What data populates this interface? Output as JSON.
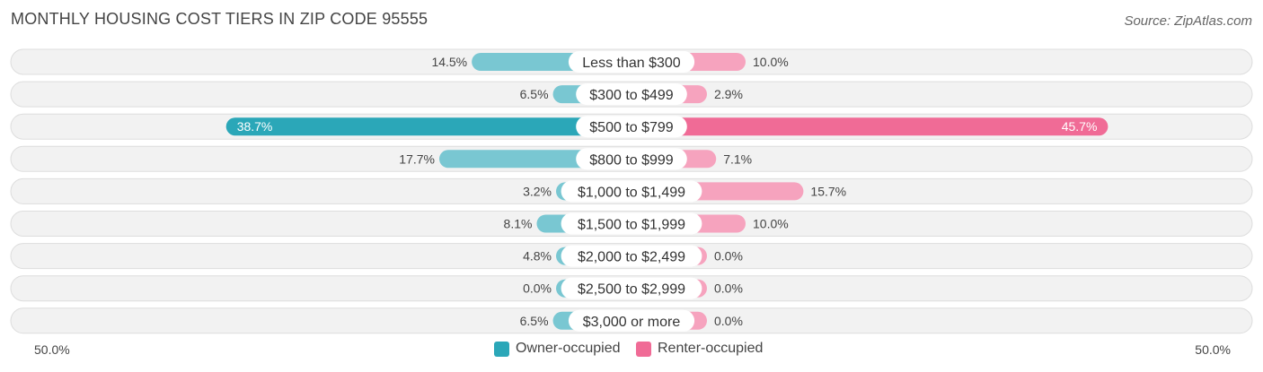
{
  "title": "MONTHLY HOUSING COST TIERS IN ZIP CODE 95555",
  "source": "Source: ZipAtlas.com",
  "colors": {
    "owner": "#2ba7b8",
    "owner_light": "#79c7d2",
    "renter": "#f06b96",
    "renter_light": "#f6a3be"
  },
  "chart_data": {
    "type": "bar",
    "orientation": "diverging-horizontal",
    "categories": [
      "Less than $300",
      "$300 to $499",
      "$500 to $799",
      "$800 to $999",
      "$1,000 to $1,499",
      "$1,500 to $1,999",
      "$2,000 to $2,499",
      "$2,500 to $2,999",
      "$3,000 or more"
    ],
    "series": [
      {
        "name": "Owner-occupied",
        "values": [
          14.5,
          6.5,
          38.7,
          17.7,
          3.2,
          8.1,
          4.8,
          0.0,
          6.5
        ],
        "labels": [
          "14.5%",
          "6.5%",
          "38.7%",
          "17.7%",
          "3.2%",
          "8.1%",
          "4.8%",
          "0.0%",
          "6.5%"
        ]
      },
      {
        "name": "Renter-occupied",
        "values": [
          10.0,
          2.9,
          45.7,
          7.1,
          15.7,
          10.0,
          0.0,
          0.0,
          0.0
        ],
        "labels": [
          "10.0%",
          "2.9%",
          "45.7%",
          "7.1%",
          "15.7%",
          "10.0%",
          "0.0%",
          "0.0%",
          "0.0%"
        ]
      }
    ],
    "axis_min_label": "50.0%",
    "axis_max_label": "50.0%",
    "xlim": [
      -50,
      50
    ],
    "legend_position": "bottom-center",
    "grid": false
  }
}
